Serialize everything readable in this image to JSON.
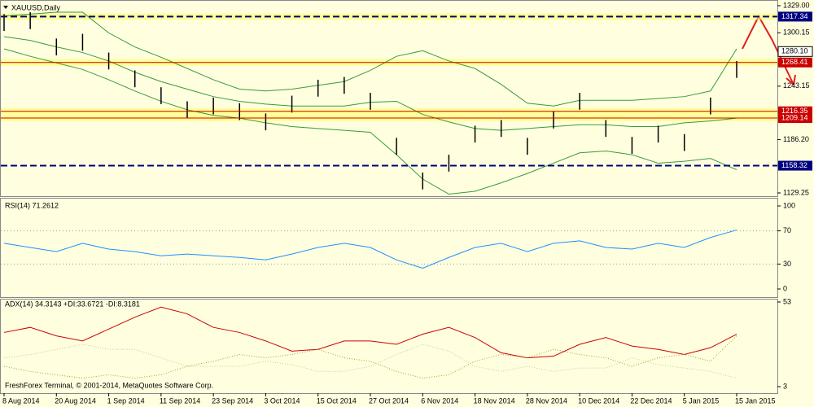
{
  "chart_data": [
    {
      "type": "ohlc",
      "title": "XAUUSD,Daily",
      "categories": [
        "8 Aug 2014",
        null,
        "20 Aug 2014",
        null,
        "1 Sep 2014",
        null,
        "11 Sep 2014",
        null,
        "23 Sep 2014",
        null,
        "3 Oct 2014",
        null,
        "15 Oct 2014",
        null,
        "27 Oct 2014",
        null,
        "6 Nov 2014",
        null,
        "18 Nov 2014",
        null,
        "28 Nov 2014",
        null,
        "10 Dec 2014",
        null,
        "22 Dec 2014",
        null,
        "5 Jan 2015",
        null,
        "15 Jan 2015"
      ],
      "high": [
        1320,
        1322,
        1294,
        1299,
        1279,
        1260,
        1242,
        1227,
        1231,
        1225,
        1214,
        1233,
        1250,
        1253,
        1236,
        1188,
        1151,
        1170,
        1201,
        1207,
        1188,
        1216,
        1236,
        1207,
        1189,
        1201,
        1192,
        1231,
        1270
      ],
      "low": [
        1302,
        1304,
        1276,
        1281,
        1261,
        1242,
        1224,
        1209,
        1213,
        1207,
        1196,
        1215,
        1232,
        1235,
        1218,
        1170,
        1133,
        1152,
        1183,
        1189,
        1170,
        1198,
        1218,
        1189,
        1171,
        1183,
        1174,
        1213,
        1252
      ],
      "color": "#000000",
      "bands": [
        {
          "color": "#3a9a3a",
          "values": [
            1318,
            1320,
            1322,
            1322,
            1300,
            1285,
            1274,
            1262,
            1250,
            1240,
            1238,
            1240,
            1244,
            1248,
            1260,
            1275,
            1281,
            1270,
            1262,
            1245,
            1225,
            1222,
            1228,
            1228,
            1228,
            1230,
            1232,
            1238,
            1283
          ]
        },
        {
          "color": "#3a9a3a",
          "values": [
            1296,
            1292,
            1285,
            1279,
            1270,
            1258,
            1248,
            1240,
            1232,
            1227,
            1224,
            1222,
            1222,
            1222,
            1226,
            1227,
            1213,
            1205,
            1198,
            1196,
            1198,
            1200,
            1202,
            1202,
            1200,
            1200,
            1204,
            1206,
            1209
          ]
        },
        {
          "color": "#3a9a3a",
          "values": [
            1283,
            1275,
            1268,
            1261,
            1250,
            1238,
            1227,
            1218,
            1212,
            1209,
            1204,
            1200,
            1198,
            1196,
            1194,
            1170,
            1144,
            1128,
            1131,
            1140,
            1150,
            1161,
            1172,
            1174,
            1170,
            1161,
            1163,
            1166,
            1154
          ]
        }
      ],
      "levels": [
        {
          "value": 1317.34,
          "color": "#000080",
          "dash": true,
          "highlight": true
        },
        {
          "value": 1268.41,
          "color": "#cc0000",
          "dash": false,
          "highlight": true
        },
        {
          "value": 1216.35,
          "color": "#cc0000",
          "dash": false,
          "highlight": true
        },
        {
          "value": 1209.14,
          "color": "#cc0000",
          "dash": false,
          "highlight": true
        },
        {
          "value": 1158.32,
          "color": "#000080",
          "dash": true,
          "highlight": false
        }
      ],
      "last_price": {
        "value": 1280.1,
        "label": "1280.10"
      },
      "ylim": [
        1129.25,
        1329
      ],
      "yticks": [
        {
          "value": 1329,
          "label": "1329.00"
        },
        1300.15,
        1243.15,
        {
          "value": 1186.2,
          "label": "1186.20"
        },
        1129.25
      ]
    },
    {
      "type": "line",
      "title": "RSI(14) 71.2612",
      "series": [
        {
          "color": "#1e90ff",
          "values": [
            55,
            50,
            45,
            55,
            48,
            45,
            40,
            42,
            40,
            38,
            35,
            42,
            50,
            55,
            50,
            35,
            25,
            38,
            50,
            55,
            45,
            55,
            58,
            50,
            48,
            55,
            50,
            62,
            71
          ]
        }
      ],
      "guides": [
        30,
        70
      ],
      "ylim": [
        0,
        100
      ],
      "yticks": [
        0,
        30,
        70,
        100
      ]
    },
    {
      "type": "line",
      "title": "ADX(14) 34.3143 +DI:33.6721 -DI:8.3181",
      "series": [
        {
          "color": "#cc0000",
          "dash": false,
          "values": [
            35,
            38,
            33,
            30,
            37,
            44,
            50,
            46,
            38,
            35,
            30,
            24,
            25,
            30,
            30,
            28,
            34,
            38,
            32,
            23,
            20,
            21,
            28,
            32,
            27,
            25,
            22,
            26,
            34
          ]
        },
        {
          "color": "#a0a030",
          "dash": true,
          "values": [
            15,
            12,
            10,
            8,
            10,
            8,
            10,
            15,
            18,
            22,
            20,
            22,
            25,
            20,
            18,
            12,
            8,
            10,
            18,
            22,
            20,
            25,
            22,
            20,
            15,
            20,
            22,
            18,
            33
          ]
        },
        {
          "color": "#c8c890",
          "dash": true,
          "values": [
            20,
            22,
            25,
            28,
            25,
            25,
            20,
            15,
            15,
            15,
            18,
            16,
            12,
            12,
            15,
            22,
            28,
            24,
            15,
            12,
            15,
            12,
            14,
            14,
            20,
            16,
            14,
            12,
            8
          ]
        }
      ],
      "ylim": [
        3,
        53
      ],
      "yticks": [
        3,
        53
      ]
    }
  ],
  "footer": "FreshForex Terminal, © 2001-2014, MetaQuotes Software Corp."
}
